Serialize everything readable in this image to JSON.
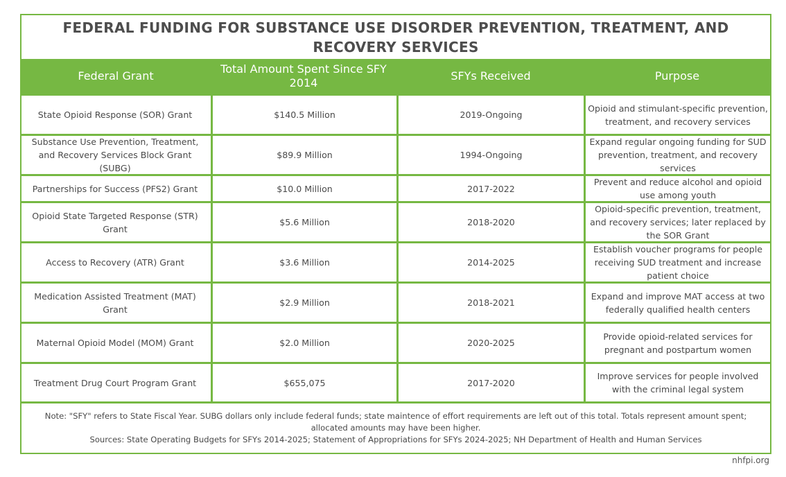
{
  "title": "FEDERAL FUNDING FOR SUBSTANCE USE DISORDER PREVENTION, TREATMENT, AND RECOVERY SERVICES",
  "colors": {
    "accent": "#76b843",
    "text": "#4a4a4a"
  },
  "columns": [
    "Federal Grant",
    "Total Amount Spent Since SFY 2014",
    "SFYs Received",
    "Purpose"
  ],
  "rows": [
    {
      "grant": "State Opioid Response (SOR) Grant",
      "amount": "$140.5 Million",
      "years": "2019-Ongoing",
      "purpose": "Opioid and stimulant-specific prevention, treatment, and recovery services"
    },
    {
      "grant": "Substance Use Prevention, Treatment, and Recovery Services Block Grant (SUBG)",
      "amount": "$89.9 Million",
      "years": "1994-Ongoing",
      "purpose": "Expand regular ongoing funding for SUD prevention, treatment, and recovery services"
    },
    {
      "grant": "Partnerships for Success (PFS2) Grant",
      "amount": "$10.0 Million",
      "years": "2017-2022",
      "purpose": "Prevent and reduce alcohol and opioid use among youth"
    },
    {
      "grant": "Opioid State Targeted Response (STR) Grant",
      "amount": "$5.6 Million",
      "years": "2018-2020",
      "purpose": "Opioid-specific prevention, treatment, and recovery services; later replaced by the SOR Grant"
    },
    {
      "grant": "Access to Recovery (ATR) Grant",
      "amount": "$3.6 Million",
      "years": "2014-2025",
      "purpose": "Establish voucher programs for people receiving SUD treatment and increase patient choice"
    },
    {
      "grant": "Medication Assisted Treatment (MAT) Grant",
      "amount": "$2.9 Million",
      "years": "2018-2021",
      "purpose": "Expand and improve MAT access at two federally qualified health centers"
    },
    {
      "grant": "Maternal Opioid Model (MOM) Grant",
      "amount": "$2.0 Million",
      "years": "2020-2025",
      "purpose": "Provide opioid-related services for pregnant and postpartum women"
    },
    {
      "grant": "Treatment Drug Court Program Grant",
      "amount": "$655,075",
      "years": "2017-2020",
      "purpose": "Improve services for people involved with the criminal legal system"
    }
  ],
  "note": "Note: \"SFY\" refers to State Fiscal Year. SUBG dollars only include federal funds; state maintence of effort requirements are left out of this total. Totals represent amount spent; allocated amounts may have been higher.",
  "sources": "Sources: State Operating Budgets for SFYs 2014-2025; Statement of Appropriations for SFYs 2024-2025; NH Department of Health and Human Services",
  "credit": "nhfpi.org"
}
